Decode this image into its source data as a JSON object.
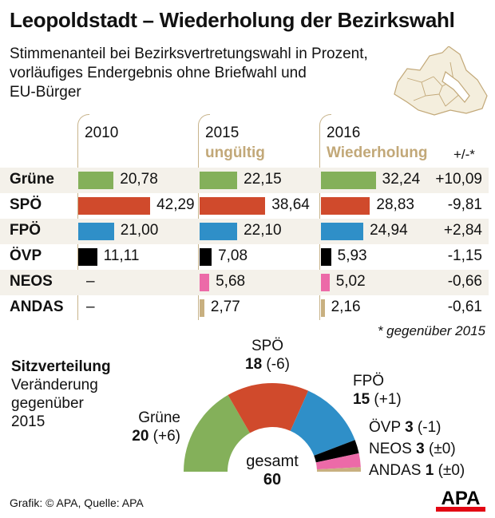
{
  "title": "Leopoldstadt – Wiederholung der Bezirkswahl",
  "subtitle": [
    "Stimmenanteil bei Bezirksvertretungswahl in Prozent,",
    "vorläufiges Endergebnis ohne Briefwahl und",
    "EU-Bürger"
  ],
  "chart_data": [
    {
      "type": "bar",
      "orientation": "horizontal",
      "columns": [
        {
          "year": "2010",
          "note": ""
        },
        {
          "year": "2015",
          "note": "ungültig"
        },
        {
          "year": "2016",
          "note": "Wiederholung"
        }
      ],
      "change_header": "+/-*",
      "categories": [
        "Grüne",
        "SPÖ",
        "FPÖ",
        "ÖVP",
        "NEOS",
        "ANDAS"
      ],
      "colors": [
        "#84b05a",
        "#d04a2c",
        "#2f8fc8",
        "#000000",
        "#ec6aa8",
        "#c8b080"
      ],
      "series": [
        {
          "name": "2010",
          "values": [
            20.78,
            42.29,
            21.0,
            11.11,
            null,
            null
          ],
          "labels": [
            "20,78",
            "42,29",
            "21,00",
            "11,11",
            "–",
            "–"
          ]
        },
        {
          "name": "2015",
          "values": [
            22.15,
            38.64,
            22.1,
            7.08,
            5.68,
            2.77
          ],
          "labels": [
            "22,15",
            "38,64",
            "22,10",
            "7,08",
            "5,68",
            "2,77"
          ]
        },
        {
          "name": "2016",
          "values": [
            32.24,
            28.83,
            24.94,
            5.93,
            5.02,
            2.16
          ],
          "labels": [
            "32,24",
            "28,83",
            "24,94",
            "5,93",
            "5,02",
            "2,16"
          ]
        }
      ],
      "change": [
        "+10,09",
        "-9,81",
        "+2,84",
        "-1,15",
        "-0,66",
        "-0,61"
      ],
      "footnote": "* gegenüber 2015"
    },
    {
      "type": "pie",
      "variant": "half-donut",
      "title": "Sitzverteilung",
      "subtitle": [
        "Veränderung",
        "gegenüber",
        "2015"
      ],
      "categories": [
        "Grüne",
        "SPÖ",
        "FPÖ",
        "ÖVP",
        "NEOS",
        "ANDAS"
      ],
      "values": [
        20,
        18,
        15,
        3,
        3,
        1
      ],
      "changes": [
        "(+6)",
        "(-6)",
        "(+1)",
        "(-1)",
        "(±0)",
        "(±0)"
      ],
      "colors": [
        "#84b05a",
        "#d04a2c",
        "#2f8fc8",
        "#000000",
        "#ec6aa8",
        "#c8b080"
      ],
      "total_label": "gesamt",
      "total": "60"
    }
  ],
  "footer": {
    "credit": "Grafik: © APA, Quelle: APA",
    "logo": "APA"
  }
}
